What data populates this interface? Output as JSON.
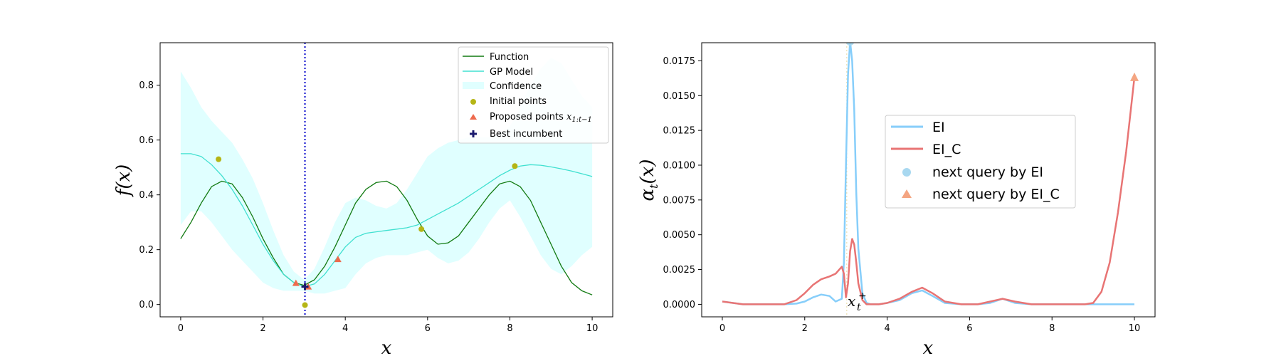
{
  "colors": {
    "function": "#117a11",
    "gp_model": "#40e0d0",
    "confidence": "#e0ffff",
    "initial": "#b5b515",
    "proposed": "#ee6a4d",
    "best": "#1a1a6e",
    "vline": "#0000cc",
    "ei": "#87cefa",
    "ei_c": "#e87474",
    "ei_marker": "#a8d8f0",
    "ei_c_marker": "#f4a582"
  },
  "chart_data": [
    {
      "type": "line",
      "xlabel": "x",
      "ylabel": "f(x)",
      "xlim": [
        -0.5,
        10.5
      ],
      "ylim": [
        -0.045,
        0.955
      ],
      "xticks": [
        "0",
        "2",
        "4",
        "6",
        "8",
        "10"
      ],
      "yticks": [
        "0.0",
        "0.2",
        "0.4",
        "0.6",
        "0.8"
      ],
      "grid": false,
      "legend_position": "top-right",
      "legend": {
        "function": "Function",
        "gp_model": "GP Model",
        "confidence": "Confidence",
        "initial": "Initial points",
        "proposed_prefix": "Proposed points ",
        "proposed_math": "x",
        "proposed_sub": "1:t−1",
        "best": "Best incumbent"
      },
      "function_curve": {
        "x": [
          0,
          0.25,
          0.5,
          0.75,
          1.0,
          1.25,
          1.5,
          1.75,
          2.0,
          2.25,
          2.5,
          2.75,
          3.0,
          3.25,
          3.5,
          3.75,
          4.0,
          4.25,
          4.5,
          4.75,
          5.0,
          5.25,
          5.5,
          5.75,
          6.0,
          6.25,
          6.5,
          6.75,
          7.0,
          7.25,
          7.5,
          7.75,
          8.0,
          8.25,
          8.5,
          8.75,
          9.0,
          9.25,
          9.5,
          9.75,
          10.0
        ],
        "y": [
          0.24,
          0.3,
          0.37,
          0.43,
          0.45,
          0.44,
          0.39,
          0.32,
          0.24,
          0.17,
          0.11,
          0.08,
          0.07,
          0.09,
          0.14,
          0.21,
          0.29,
          0.37,
          0.42,
          0.445,
          0.45,
          0.43,
          0.38,
          0.31,
          0.25,
          0.22,
          0.225,
          0.25,
          0.3,
          0.35,
          0.4,
          0.44,
          0.45,
          0.43,
          0.38,
          0.3,
          0.22,
          0.14,
          0.08,
          0.05,
          0.035
        ]
      },
      "gp_mean": {
        "x": [
          0,
          0.25,
          0.5,
          0.75,
          1.0,
          1.25,
          1.5,
          1.75,
          2.0,
          2.25,
          2.5,
          2.75,
          3.0,
          3.25,
          3.5,
          3.75,
          4.0,
          4.25,
          4.5,
          4.75,
          5.0,
          5.25,
          5.5,
          5.75,
          6.0,
          6.25,
          6.5,
          6.75,
          7.0,
          7.25,
          7.5,
          7.75,
          8.0,
          8.25,
          8.5,
          8.75,
          9.0,
          9.25,
          9.5,
          9.75,
          10.0
        ],
        "y": [
          0.55,
          0.55,
          0.54,
          0.51,
          0.47,
          0.42,
          0.36,
          0.29,
          0.22,
          0.16,
          0.11,
          0.08,
          0.065,
          0.075,
          0.11,
          0.16,
          0.21,
          0.245,
          0.26,
          0.265,
          0.27,
          0.275,
          0.28,
          0.29,
          0.31,
          0.33,
          0.35,
          0.37,
          0.395,
          0.42,
          0.445,
          0.47,
          0.49,
          0.505,
          0.51,
          0.508,
          0.502,
          0.495,
          0.487,
          0.477,
          0.467
        ]
      },
      "confidence_band": {
        "x": [
          0,
          0.25,
          0.5,
          0.75,
          1.0,
          1.25,
          1.5,
          1.75,
          2.0,
          2.25,
          2.5,
          2.75,
          3.0,
          3.25,
          3.5,
          3.75,
          4.0,
          4.25,
          4.5,
          4.75,
          5.0,
          5.25,
          5.5,
          5.75,
          6.0,
          6.25,
          6.5,
          6.75,
          7.0,
          7.25,
          7.5,
          7.75,
          8.0,
          8.25,
          8.5,
          8.75,
          9.0,
          9.25,
          9.5,
          9.75,
          10.0
        ],
        "upper": [
          0.85,
          0.79,
          0.72,
          0.67,
          0.63,
          0.59,
          0.53,
          0.46,
          0.37,
          0.27,
          0.18,
          0.12,
          0.09,
          0.13,
          0.21,
          0.3,
          0.37,
          0.39,
          0.38,
          0.36,
          0.35,
          0.37,
          0.42,
          0.48,
          0.54,
          0.57,
          0.59,
          0.6,
          0.61,
          0.61,
          0.61,
          0.62,
          0.65,
          0.72,
          0.8,
          0.86,
          0.9,
          0.88,
          0.82,
          0.76,
          0.72
        ],
        "lower": [
          0.29,
          0.34,
          0.34,
          0.3,
          0.25,
          0.2,
          0.16,
          0.12,
          0.08,
          0.06,
          0.05,
          0.05,
          0.05,
          0.04,
          0.04,
          0.05,
          0.06,
          0.11,
          0.15,
          0.17,
          0.18,
          0.18,
          0.18,
          0.19,
          0.2,
          0.17,
          0.15,
          0.16,
          0.19,
          0.24,
          0.3,
          0.35,
          0.38,
          0.32,
          0.25,
          0.18,
          0.13,
          0.11,
          0.14,
          0.18,
          0.21
        ]
      },
      "initial_points": {
        "x": [
          0.92,
          3.02,
          5.85,
          8.12
        ],
        "y": [
          0.53,
          -0.002,
          0.275,
          0.505
        ]
      },
      "proposed_points": {
        "x": [
          2.8,
          3.1,
          3.82
        ],
        "y": [
          0.078,
          0.065,
          0.165
        ]
      },
      "best_incumbent": {
        "x": [
          3.02
        ],
        "y": [
          0.065
        ]
      },
      "incumbent_vline_x": 3.02
    },
    {
      "type": "line",
      "xlabel": "x",
      "ylabel": "α_t(x)",
      "xlim": [
        -0.5,
        10.5
      ],
      "ylim": [
        -0.0009,
        0.0188
      ],
      "xticks": [
        "0",
        "2",
        "4",
        "6",
        "8",
        "10"
      ],
      "yticks": [
        "0.0000",
        "0.0025",
        "0.0050",
        "0.0075",
        "0.0100",
        "0.0125",
        "0.0150",
        "0.0175"
      ],
      "grid": false,
      "legend_position": "center",
      "legend": {
        "ei": "EI",
        "ei_c": "EI_C",
        "next_ei": "next query by EI",
        "next_ei_c": "next query by EI_C"
      },
      "annotation": {
        "text": "x",
        "sub": "t",
        "sup": "+",
        "x": 3.02,
        "y": 0.0
      },
      "series": [
        {
          "name": "EI",
          "x": [
            0,
            0.5,
            1.0,
            1.5,
            1.8,
            2.0,
            2.2,
            2.4,
            2.6,
            2.75,
            2.9,
            2.95,
            3.0,
            3.05,
            3.1,
            3.15,
            3.2,
            3.25,
            3.3,
            3.4,
            3.5,
            3.6,
            3.8,
            4.0,
            4.3,
            4.6,
            4.85,
            5.1,
            5.4,
            5.8,
            6.2,
            6.5,
            6.8,
            7.1,
            7.5,
            8.0,
            8.5,
            9.0,
            9.5,
            10.0
          ],
          "y": [
            0.0002,
            0.0,
            0.0,
            0.0,
            5e-05,
            0.0002,
            0.0005,
            0.0007,
            0.0006,
            0.0002,
            0.0004,
            0.003,
            0.01,
            0.0165,
            0.0189,
            0.0175,
            0.014,
            0.008,
            0.004,
            0.0008,
            0.0001,
            0.0,
            0.0,
            0.0001,
            0.0003,
            0.0008,
            0.001,
            0.0006,
            0.0001,
            0.0,
            0.0,
            0.0001,
            0.0004,
            0.0001,
            0.0,
            0.0,
            0.0,
            0.0,
            0.0,
            0.0
          ]
        },
        {
          "name": "EI_C",
          "x": [
            0,
            0.5,
            1.0,
            1.5,
            1.8,
            2.0,
            2.2,
            2.4,
            2.6,
            2.75,
            2.9,
            2.95,
            3.0,
            3.05,
            3.1,
            3.15,
            3.2,
            3.25,
            3.3,
            3.4,
            3.5,
            3.6,
            3.8,
            4.0,
            4.3,
            4.6,
            4.85,
            5.1,
            5.4,
            5.8,
            6.2,
            6.5,
            6.8,
            7.1,
            7.5,
            8.0,
            8.5,
            8.8,
            9.0,
            9.2,
            9.4,
            9.6,
            9.8,
            10.0
          ],
          "y": [
            0.0002,
            0.0,
            0.0,
            0.0,
            0.0003,
            0.0008,
            0.0014,
            0.0018,
            0.002,
            0.0022,
            0.0027,
            0.0022,
            0.0005,
            0.0015,
            0.0038,
            0.0047,
            0.0043,
            0.003,
            0.0015,
            0.0003,
            0.0,
            0.0,
            0.0,
            0.0001,
            0.0004,
            0.0009,
            0.0012,
            0.0008,
            0.0002,
            0.0,
            0.0,
            0.0002,
            0.0004,
            0.0002,
            0.0,
            0.0,
            0.0,
            0.0,
            0.0001,
            0.0009,
            0.003,
            0.0066,
            0.011,
            0.0163
          ]
        }
      ],
      "next_query_ei": {
        "x": 3.1,
        "y": 0.0189
      },
      "next_query_ei_c": {
        "x": 10.0,
        "y": 0.0163
      }
    }
  ]
}
